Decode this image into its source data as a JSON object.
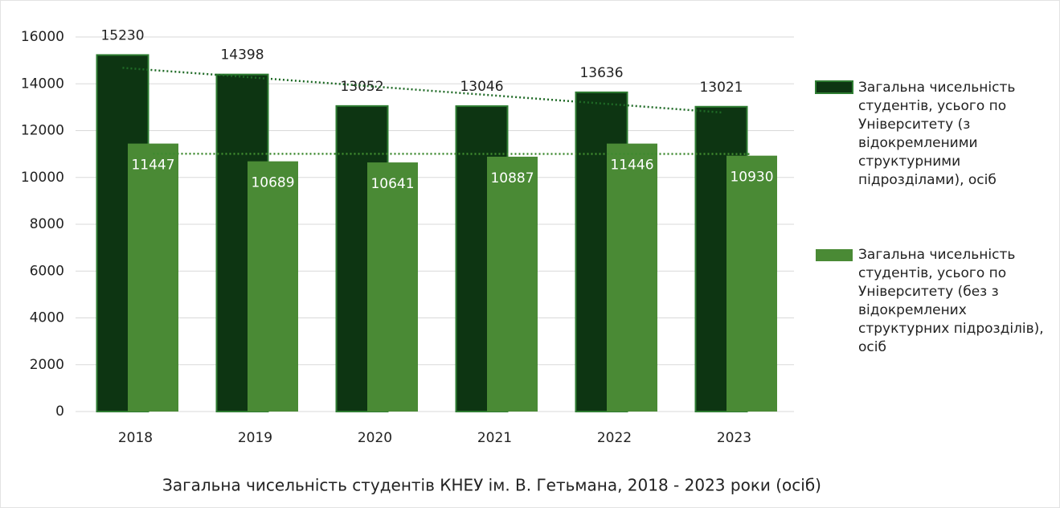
{
  "chart_data": {
    "type": "bar",
    "title": "Загальна чисельність студентів КНЕУ ім. В. Гетьмана, 2018 - 2023 роки (осіб)",
    "categories": [
      "2018",
      "2019",
      "2020",
      "2021",
      "2022",
      "2023"
    ],
    "series": [
      {
        "name": "Загальна чисельність студентів, усього по Університету (з відокремленими структурними підрозділами), осіб",
        "color": "#0d3512",
        "values": [
          15230,
          14398,
          13052,
          13046,
          13636,
          13021
        ]
      },
      {
        "name": "Загальна чисельність студентів, усього по Університету (без з відокремлених структурних підрозділів), осіб",
        "color": "#4a8a35",
        "values": [
          11447,
          10689,
          10641,
          10887,
          11446,
          10930
        ]
      }
    ],
    "ylim": [
      0,
      16000
    ],
    "yticks": [
      0,
      2000,
      4000,
      6000,
      8000,
      10000,
      12000,
      14000,
      16000
    ],
    "grid": true,
    "legend": "right",
    "trendline": true
  }
}
